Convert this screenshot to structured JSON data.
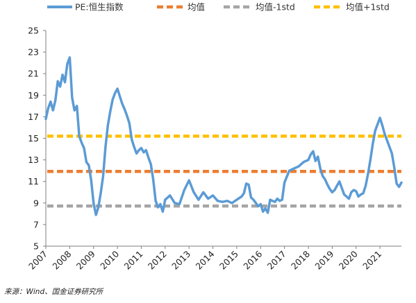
{
  "chart_data": {
    "type": "line",
    "xlim": [
      2007,
      2021.9
    ],
    "ylim": [
      5,
      25
    ],
    "yticks": [
      5,
      7,
      9,
      11,
      13,
      15,
      17,
      19,
      21,
      23,
      25
    ],
    "xtick_labels": [
      "2007",
      "2008",
      "2009",
      "2010",
      "2011",
      "2012",
      "2013",
      "2014",
      "2015",
      "2016",
      "2017",
      "2018",
      "2019",
      "2020",
      "2021"
    ],
    "grid": false,
    "legend_position": "top",
    "series": [
      {
        "name": "PE:恒生指数",
        "color": "#5b9bd5",
        "style": "solid",
        "x": [
          2007.0,
          2007.1,
          2007.2,
          2007.3,
          2007.4,
          2007.5,
          2007.6,
          2007.7,
          2007.8,
          2007.9,
          2008.0,
          2008.1,
          2008.2,
          2008.3,
          2008.4,
          2008.5,
          2008.6,
          2008.7,
          2008.8,
          2008.9,
          2009.0,
          2009.1,
          2009.2,
          2009.3,
          2009.4,
          2009.5,
          2009.6,
          2009.7,
          2009.8,
          2009.9,
          2010.0,
          2010.1,
          2010.2,
          2010.3,
          2010.4,
          2010.5,
          2010.6,
          2010.7,
          2010.8,
          2010.9,
          2011.0,
          2011.1,
          2011.2,
          2011.3,
          2011.4,
          2011.5,
          2011.6,
          2011.7,
          2011.8,
          2011.9,
          2012.0,
          2012.2,
          2012.4,
          2012.6,
          2012.8,
          2013.0,
          2013.2,
          2013.4,
          2013.6,
          2013.8,
          2014.0,
          2014.2,
          2014.4,
          2014.6,
          2014.8,
          2015.0,
          2015.2,
          2015.3,
          2015.4,
          2015.5,
          2015.6,
          2015.7,
          2015.8,
          2015.9,
          2016.0,
          2016.1,
          2016.2,
          2016.3,
          2016.4,
          2016.5,
          2016.6,
          2016.7,
          2016.8,
          2016.9,
          2017.0,
          2017.2,
          2017.4,
          2017.6,
          2017.8,
          2018.0,
          2018.1,
          2018.2,
          2018.3,
          2018.4,
          2018.5,
          2018.6,
          2018.7,
          2018.8,
          2018.9,
          2019.0,
          2019.1,
          2019.2,
          2019.3,
          2019.4,
          2019.5,
          2019.6,
          2019.7,
          2019.8,
          2019.9,
          2020.0,
          2020.1,
          2020.2,
          2020.3,
          2020.4,
          2020.5,
          2020.6,
          2020.7,
          2020.8,
          2020.9,
          2021.0,
          2021.1,
          2021.2,
          2021.3,
          2021.4,
          2021.5,
          2021.6,
          2021.7,
          2021.8,
          2021.9
        ],
        "y": [
          16.8,
          17.8,
          18.4,
          17.6,
          18.5,
          20.3,
          19.8,
          20.9,
          20.2,
          21.9,
          22.5,
          18.8,
          17.6,
          18.0,
          15.2,
          14.6,
          14.1,
          12.8,
          12.5,
          11.1,
          9.0,
          7.9,
          8.6,
          9.9,
          11.5,
          14.2,
          16.2,
          17.5,
          18.6,
          19.2,
          19.6,
          18.9,
          18.2,
          17.7,
          17.1,
          16.4,
          14.9,
          14.2,
          13.6,
          13.9,
          14.1,
          13.7,
          13.9,
          13.2,
          12.6,
          11.2,
          9.2,
          8.6,
          8.9,
          8.2,
          9.3,
          9.7,
          9.0,
          8.9,
          10.2,
          11.1,
          10.0,
          9.3,
          10.0,
          9.4,
          9.7,
          9.2,
          9.1,
          9.2,
          9.0,
          9.3,
          9.6,
          9.9,
          10.8,
          10.7,
          9.5,
          9.3,
          9.0,
          8.7,
          8.9,
          8.2,
          8.5,
          8.1,
          9.3,
          9.2,
          9.1,
          9.4,
          9.2,
          9.3,
          10.9,
          12.0,
          12.2,
          12.4,
          12.8,
          13.0,
          13.5,
          13.8,
          12.9,
          13.3,
          12.2,
          11.5,
          11.2,
          10.7,
          10.3,
          10.0,
          10.2,
          10.6,
          11.0,
          10.4,
          9.8,
          9.6,
          9.4,
          10.0,
          10.2,
          10.1,
          9.6,
          9.8,
          9.9,
          10.6,
          11.7,
          13.0,
          14.5,
          15.7,
          16.3,
          16.9,
          16.2,
          15.4,
          14.8,
          14.2,
          13.6,
          12.3,
          10.8,
          10.5,
          10.9
        ]
      },
      {
        "name": "均值",
        "color": "#ed7d31",
        "style": "dashed",
        "value": 11.93
      },
      {
        "name": "均值-1std",
        "color": "#a5a5a5",
        "style": "dashed",
        "value": 8.72
      },
      {
        "name": "均值+1std",
        "color": "#ffc000",
        "style": "dashed",
        "value": 15.2
      }
    ]
  },
  "source": "来源：Wind、国金证券研究所"
}
